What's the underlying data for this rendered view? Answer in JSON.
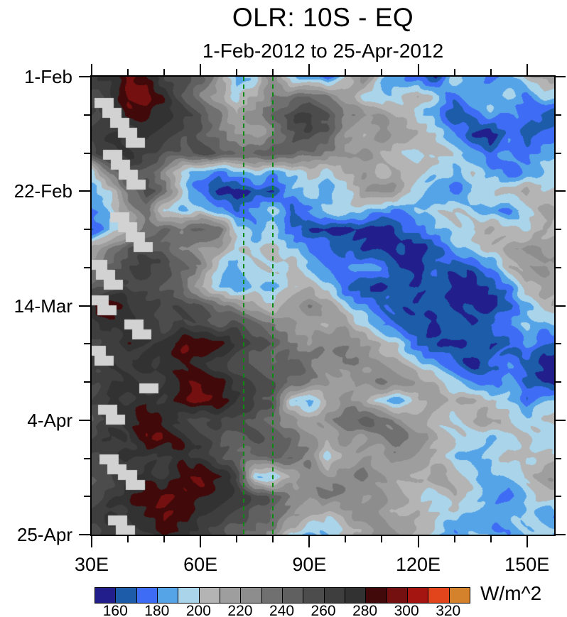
{
  "chart_data": {
    "type": "heatmap",
    "subtype": "hovmoller-time-longitude-filled-contour",
    "title": "OLR: 10S - EQ",
    "subtitle": "1-Feb-2012 to 25-Apr-2012",
    "x_axis": {
      "majors": [
        {
          "lon": 30,
          "label": "30E"
        },
        {
          "lon": 60,
          "label": "60E"
        },
        {
          "lon": 90,
          "label": "90E"
        },
        {
          "lon": 120,
          "label": "120E"
        },
        {
          "lon": 150,
          "label": "150E"
        }
      ],
      "minor_lons": [
        40,
        50,
        70,
        80,
        100,
        110,
        130,
        140
      ],
      "domain": [
        30,
        157.5
      ]
    },
    "y_axis": {
      "majors": [
        {
          "day": 0,
          "label": "1-Feb"
        },
        {
          "day": 21,
          "label": "22-Feb"
        },
        {
          "day": 42,
          "label": "14-Mar"
        },
        {
          "day": 63,
          "label": "4-Apr"
        },
        {
          "day": 84,
          "label": "25-Apr"
        }
      ],
      "minor_days": [
        7,
        14,
        28,
        35,
        49,
        56,
        70,
        77
      ],
      "domain_days": [
        0,
        84
      ]
    },
    "colorbar": {
      "tick_labels": [
        "160",
        "180",
        "200",
        "220",
        "240",
        "260",
        "280",
        "300",
        "320"
      ],
      "unit": "W/m^2",
      "level_min": 150,
      "level_step": 10,
      "palette": [
        "#221f8c",
        "#1c5ca8",
        "#3f6cf4",
        "#56a4e8",
        "#a9d4ea",
        "#b4b4b4",
        "#9e9e9e",
        "#8d8d8d",
        "#707070",
        "#606060",
        "#4c4c4c",
        "#3e3e3e",
        "#323232",
        "#410909",
        "#741010",
        "#a41511",
        "#e2441b",
        "#d5822d"
      ]
    },
    "reference_lines": {
      "lons": [
        72,
        80
      ],
      "color": "#0c8a12",
      "style": "dashed"
    },
    "missing_data_blocks": {
      "color": "#d2d2d2",
      "block_w": 27,
      "block_h": 14,
      "step_dx": 11,
      "step_dy": 14,
      "groups": [
        [
          4,
          30,
          5
        ],
        [
          16,
          103,
          4
        ],
        [
          26,
          191,
          4
        ],
        [
          -5,
          258,
          3
        ],
        [
          -3,
          308,
          2
        ],
        [
          46,
          342,
          2
        ],
        [
          -7,
          379,
          2
        ],
        [
          67,
          432,
          1
        ],
        [
          9,
          462,
          2
        ],
        [
          11,
          532,
          2
        ],
        [
          37,
          554,
          2
        ],
        [
          23,
          618,
          3
        ]
      ]
    },
    "grid": {
      "unit": "W/m^2",
      "lons": [
        30,
        35,
        40,
        45,
        50,
        55,
        60,
        65,
        70,
        75,
        80,
        85,
        90,
        95,
        100,
        105,
        110,
        115,
        120,
        125,
        130,
        135,
        140,
        145,
        150,
        155
      ],
      "days": [
        0,
        3.5,
        7,
        10.5,
        14,
        17.5,
        21,
        24.5,
        28,
        31.5,
        35,
        38.5,
        42,
        45.5,
        49,
        52.5,
        56,
        59.5,
        63,
        66.5,
        70,
        73.5,
        77,
        80.5,
        84
      ],
      "values": [
        [
          265,
          270,
          290,
          285,
          265,
          255,
          245,
          215,
          180,
          195,
          235,
          195,
          185,
          170,
          195,
          225,
          195,
          185,
          175,
          160,
          195,
          185,
          175,
          185,
          205,
          215
        ],
        [
          255,
          265,
          290,
          295,
          275,
          255,
          235,
          215,
          195,
          205,
          225,
          235,
          245,
          235,
          215,
          195,
          185,
          195,
          215,
          195,
          175,
          185,
          185,
          195,
          175,
          195
        ],
        [
          260,
          270,
          285,
          280,
          270,
          265,
          255,
          235,
          215,
          225,
          235,
          255,
          265,
          255,
          235,
          225,
          215,
          205,
          195,
          185,
          165,
          175,
          185,
          175,
          175,
          165
        ],
        [
          265,
          270,
          265,
          275,
          265,
          255,
          245,
          235,
          225,
          215,
          225,
          245,
          255,
          245,
          225,
          215,
          225,
          215,
          205,
          195,
          185,
          165,
          155,
          175,
          160,
          170
        ],
        [
          255,
          265,
          275,
          265,
          255,
          245,
          255,
          245,
          235,
          245,
          255,
          245,
          235,
          225,
          215,
          225,
          215,
          205,
          195,
          205,
          195,
          185,
          175,
          185,
          175,
          185
        ],
        [
          195,
          235,
          255,
          245,
          225,
          195,
          185,
          175,
          185,
          195,
          185,
          195,
          205,
          195,
          205,
          215,
          205,
          215,
          205,
          195,
          185,
          195,
          185,
          175,
          185,
          195
        ],
        [
          185,
          205,
          235,
          255,
          235,
          195,
          175,
          160,
          155,
          165,
          160,
          185,
          195,
          185,
          195,
          215,
          225,
          215,
          195,
          185,
          175,
          185,
          195,
          205,
          215,
          205
        ],
        [
          175,
          195,
          225,
          235,
          195,
          185,
          195,
          185,
          175,
          185,
          195,
          165,
          175,
          195,
          205,
          195,
          185,
          175,
          185,
          195,
          205,
          195,
          185,
          175,
          195,
          215
        ],
        [
          165,
          185,
          205,
          235,
          245,
          235,
          245,
          235,
          195,
          185,
          195,
          175,
          160,
          155,
          155,
          160,
          155,
          165,
          175,
          185,
          195,
          205,
          215,
          205,
          195,
          205
        ],
        [
          215,
          225,
          245,
          255,
          245,
          235,
          225,
          215,
          195,
          195,
          205,
          195,
          185,
          175,
          165,
          155,
          155,
          160,
          155,
          165,
          185,
          195,
          205,
          215,
          225,
          215
        ],
        [
          235,
          245,
          255,
          265,
          255,
          245,
          235,
          195,
          185,
          195,
          195,
          205,
          195,
          185,
          175,
          185,
          175,
          155,
          160,
          175,
          165,
          165,
          175,
          205,
          215,
          225
        ],
        [
          245,
          255,
          265,
          255,
          245,
          235,
          205,
          195,
          185,
          195,
          185,
          195,
          205,
          195,
          175,
          165,
          155,
          165,
          155,
          165,
          160,
          155,
          165,
          175,
          205,
          215
        ],
        [
          275,
          290,
          275,
          265,
          260,
          255,
          245,
          235,
          225,
          215,
          205,
          215,
          225,
          215,
          195,
          185,
          175,
          165,
          155,
          165,
          155,
          160,
          155,
          170,
          185,
          205
        ],
        [
          265,
          275,
          270,
          265,
          255,
          265,
          255,
          245,
          255,
          245,
          235,
          225,
          215,
          205,
          215,
          195,
          185,
          175,
          165,
          155,
          165,
          155,
          175,
          185,
          195,
          185
        ],
        [
          255,
          265,
          275,
          270,
          275,
          290,
          295,
          285,
          265,
          255,
          245,
          235,
          225,
          235,
          225,
          215,
          205,
          195,
          175,
          165,
          155,
          165,
          155,
          165,
          185,
          175
        ],
        [
          265,
          270,
          265,
          275,
          270,
          280,
          275,
          265,
          255,
          245,
          235,
          245,
          235,
          225,
          235,
          225,
          215,
          205,
          195,
          185,
          175,
          155,
          165,
          175,
          165,
          155
        ],
        [
          255,
          265,
          275,
          265,
          270,
          285,
          290,
          280,
          270,
          260,
          250,
          240,
          230,
          220,
          215,
          225,
          235,
          225,
          215,
          205,
          195,
          185,
          175,
          185,
          165,
          155
        ],
        [
          260,
          270,
          265,
          275,
          270,
          290,
          295,
          285,
          270,
          260,
          250,
          195,
          185,
          205,
          225,
          215,
          195,
          185,
          205,
          215,
          205,
          215,
          205,
          195,
          175,
          185
        ],
        [
          255,
          265,
          275,
          285,
          275,
          265,
          255,
          265,
          255,
          245,
          235,
          225,
          215,
          225,
          235,
          245,
          235,
          225,
          215,
          205,
          195,
          205,
          215,
          205,
          195,
          205
        ],
        [
          265,
          275,
          270,
          290,
          285,
          275,
          265,
          255,
          245,
          255,
          245,
          235,
          225,
          215,
          225,
          215,
          225,
          235,
          225,
          215,
          205,
          195,
          185,
          195,
          205,
          195
        ],
        [
          255,
          265,
          275,
          270,
          265,
          275,
          265,
          255,
          245,
          235,
          245,
          235,
          225,
          195,
          215,
          225,
          215,
          225,
          215,
          205,
          195,
          185,
          195,
          205,
          195,
          205
        ],
        [
          245,
          255,
          265,
          275,
          270,
          285,
          290,
          280,
          260,
          195,
          190,
          215,
          225,
          215,
          225,
          235,
          225,
          215,
          205,
          215,
          205,
          195,
          185,
          195,
          205,
          215
        ],
        [
          255,
          265,
          275,
          285,
          295,
          290,
          285,
          275,
          265,
          255,
          245,
          235,
          225,
          235,
          225,
          215,
          225,
          215,
          205,
          195,
          205,
          195,
          185,
          175,
          195,
          205
        ],
        [
          265,
          275,
          270,
          280,
          290,
          285,
          275,
          265,
          255,
          245,
          235,
          225,
          215,
          205,
          215,
          225,
          215,
          205,
          215,
          205,
          195,
          185,
          175,
          185,
          195,
          185
        ],
        [
          255,
          265,
          260,
          270,
          280,
          275,
          265,
          255,
          245,
          235,
          225,
          195,
          185,
          195,
          205,
          215,
          225,
          215,
          205,
          195,
          185,
          195,
          185,
          175,
          185,
          195
        ]
      ]
    }
  }
}
